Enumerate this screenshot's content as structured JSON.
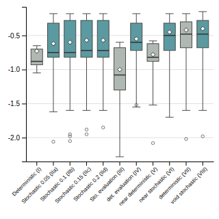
{
  "chart_data": {
    "type": "box",
    "categories": [
      "Deterministic (I)",
      "Stochastic 0.05 (IIa)",
      "Stochastic 0.1 (IIb)",
      "Stochastic 0.15 (IIc)",
      "Stochastic 0.2 (IId)",
      "Sto. evaluation (III)",
      "det. evaluation (IV)",
      "near deterministic (V)",
      "near stochastic (VI)",
      "deterministic (VII)",
      "void stochastic (VIII)"
    ],
    "colors": [
      "#b0b8b4",
      "#5b9aa0",
      "#5b9aa0",
      "#5b9aa0",
      "#5b9aa0",
      "#b0b8b4",
      "#5b9aa0",
      "#b0b8b4",
      "#5b9aa0",
      "#b0b8b4",
      "#5b9aa0"
    ],
    "boxes": [
      {
        "q1": -0.93,
        "median": -0.88,
        "q3": -0.7,
        "mean": -0.73,
        "whislo": -1.05,
        "whishi": -0.65,
        "fliers": []
      },
      {
        "q1": -0.82,
        "median": -0.75,
        "q3": -0.32,
        "mean": -0.62,
        "whislo": -1.62,
        "whishi": -0.18,
        "fliers": [
          -2.06
        ]
      },
      {
        "q1": -0.82,
        "median": -0.75,
        "q3": -0.28,
        "mean": -0.6,
        "whislo": -1.6,
        "whishi": -0.18,
        "fliers": [
          -1.95,
          -1.98,
          -2.05
        ]
      },
      {
        "q1": -0.82,
        "median": -0.72,
        "q3": -0.28,
        "mean": -0.57,
        "whislo": -1.6,
        "whishi": -0.18,
        "fliers": [
          -1.88,
          -1.95
        ]
      },
      {
        "q1": -0.82,
        "median": -0.72,
        "q3": -0.28,
        "mean": -0.57,
        "whislo": -1.6,
        "whishi": -0.18,
        "fliers": [
          -1.85
        ]
      },
      {
        "q1": -1.3,
        "median": -1.08,
        "q3": -0.68,
        "mean": -1.0,
        "whislo": -2.28,
        "whishi": -0.6,
        "fliers": []
      },
      {
        "q1": -0.72,
        "median": -0.6,
        "q3": -0.32,
        "mean": -0.55,
        "whislo": -1.55,
        "whishi": -0.18,
        "fliers": [
          -1.52
        ]
      },
      {
        "q1": -0.88,
        "median": -0.82,
        "q3": -0.62,
        "mean": -0.78,
        "whislo": -1.52,
        "whishi": -0.58,
        "fliers": [
          -2.08
        ]
      },
      {
        "q1": -0.72,
        "median": -0.5,
        "q3": -0.32,
        "mean": -0.45,
        "whislo": -1.7,
        "whishi": -0.18,
        "fliers": []
      },
      {
        "q1": -0.68,
        "median": -0.48,
        "q3": -0.3,
        "mean": -0.42,
        "whislo": -1.6,
        "whishi": -0.18,
        "fliers": [
          -2.02
        ]
      },
      {
        "q1": -0.68,
        "median": -0.48,
        "q3": -0.28,
        "mean": -0.4,
        "whislo": -1.6,
        "whishi": -0.15,
        "fliers": [
          -1.98
        ]
      }
    ],
    "ylim": [
      -2.35,
      -0.08
    ],
    "yticks": [
      -0.5,
      {
        "value": -1.0,
        "label": "-1.0"
      },
      -1.5,
      {
        "value": -2.0,
        "label": "-2.0"
      }
    ],
    "grid": true
  }
}
